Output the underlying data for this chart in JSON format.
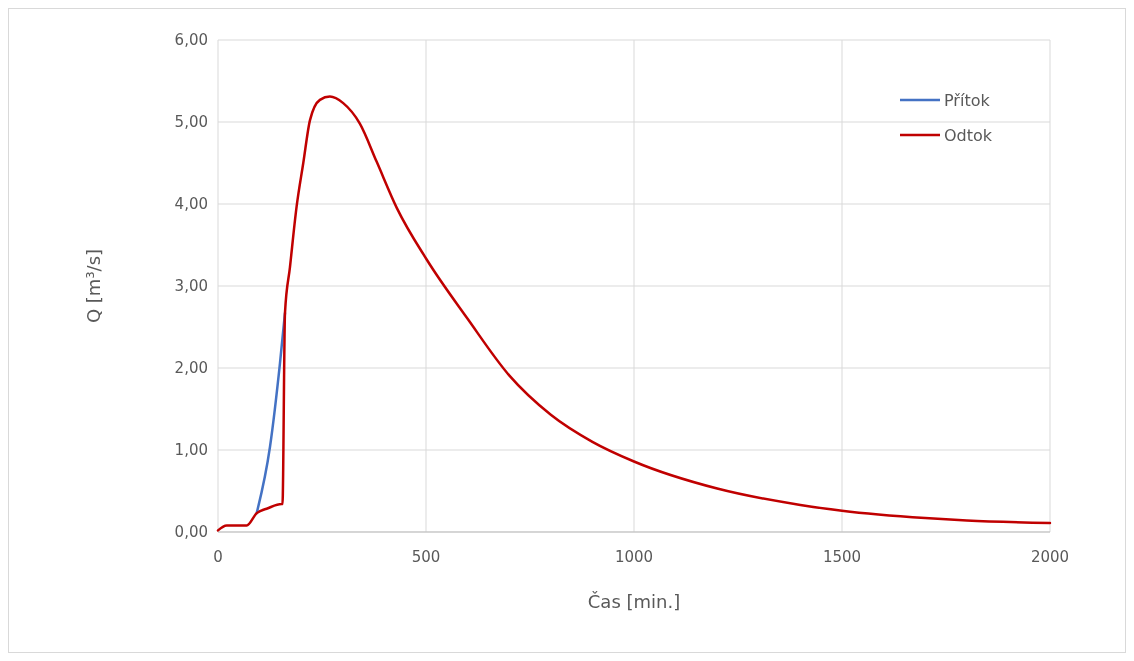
{
  "chart_data": {
    "type": "line",
    "xlabel": "Čas [min.]",
    "ylabel": "Q [m³/s]",
    "xlim": [
      0,
      2000
    ],
    "xticks": [
      0,
      500,
      1000,
      1500,
      2000
    ],
    "ylim": [
      0,
      6
    ],
    "yticks": [
      {
        "value": 0,
        "label": "0,00"
      },
      {
        "value": 1,
        "label": "1,00"
      },
      {
        "value": 2,
        "label": "2,00"
      },
      {
        "value": 3,
        "label": "3,00"
      },
      {
        "value": 4,
        "label": "4,00"
      },
      {
        "value": 5,
        "label": "5,00"
      },
      {
        "value": 6,
        "label": "6,00"
      }
    ],
    "grid": true,
    "legend": "top right",
    "series": [
      {
        "name": "Přítok",
        "color": "#4472c4",
        "x": [
          93,
          125,
          149,
          161
        ],
        "values": [
          0.23,
          1.04,
          2.06,
          2.67
        ]
      },
      {
        "name": "Odtok",
        "color": "#c00000",
        "x": [
          0,
          21,
          69,
          93,
          120,
          153,
          155,
          161,
          173,
          189,
          205,
          221,
          245,
          269,
          301,
          341,
          381,
          430,
          502,
          600,
          700,
          800,
          900,
          1000,
          1200,
          1400,
          1500,
          1700,
          1800,
          2000
        ],
        "values": [
          0.02,
          0.08,
          0.08,
          0.23,
          0.29,
          0.34,
          0.34,
          2.67,
          3.23,
          3.97,
          4.5,
          5.02,
          5.27,
          5.31,
          5.23,
          4.98,
          4.52,
          3.95,
          3.32,
          2.6,
          1.91,
          1.43,
          1.1,
          0.86,
          0.53,
          0.33,
          0.26,
          0.17,
          0.14,
          0.11
        ]
      }
    ]
  }
}
